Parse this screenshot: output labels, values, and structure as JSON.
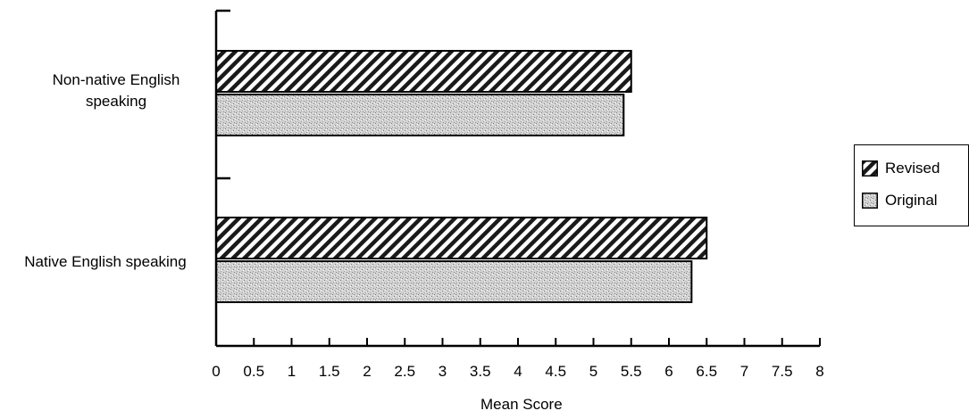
{
  "chart_data": {
    "type": "bar",
    "orientation": "horizontal",
    "categories": [
      "Non-native English speaking",
      "Native English speaking"
    ],
    "category_lines": [
      [
        "Non-native English",
        "speaking"
      ],
      [
        "Native English speaking"
      ]
    ],
    "series": [
      {
        "name": "Revised",
        "values": [
          5.5,
          6.5
        ],
        "pattern": "diagonal-hatch"
      },
      {
        "name": "Original",
        "values": [
          5.4,
          6.3
        ],
        "pattern": "stipple"
      }
    ],
    "xlabel": "Mean Score",
    "ylabel": "",
    "xlim": [
      0,
      8
    ],
    "x_ticks": [
      "0",
      "0.5",
      "1",
      "1.5",
      "2",
      "2.5",
      "3",
      "3.5",
      "4",
      "4.5",
      "5",
      "5.5",
      "6",
      "6.5",
      "7",
      "7.5",
      "8"
    ],
    "grid": false,
    "legend_position": "right"
  },
  "colors": {
    "axis": "#000000",
    "hatch": "#1a1a1a",
    "stipple_base": "#c8c8c8",
    "stipple_dark": "#8a8a8a"
  }
}
